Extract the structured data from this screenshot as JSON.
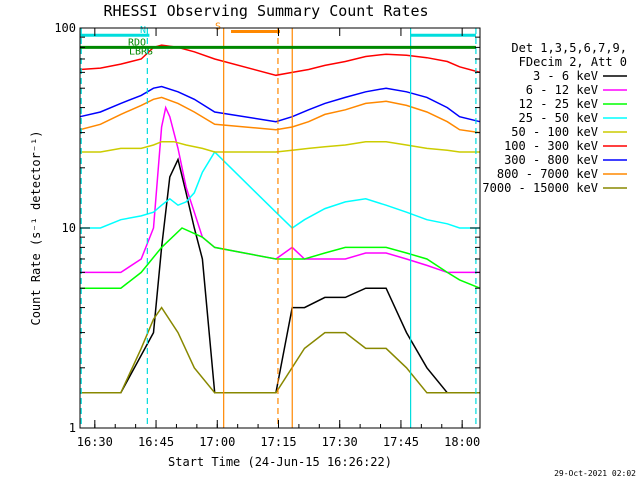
{
  "chart_data": {
    "type": "line",
    "title": "RHESSI Observing Summary Count Rates",
    "xlabel": "Start Time (24-Jun-15 16:26:22)",
    "ylabel": "Count Rate (s⁻¹ detector⁻¹)",
    "xaxis_unit": "minutes after 16:26:22",
    "xlim": [
      0,
      98
    ],
    "ylim": [
      1,
      100
    ],
    "yscale": "log",
    "x_ticks": [
      "16:30",
      "16:45",
      "17:00",
      "17:15",
      "17:30",
      "17:45",
      "18:00"
    ],
    "x_tick_values": [
      3.63,
      18.63,
      33.63,
      48.63,
      63.63,
      78.63,
      93.63
    ],
    "y_ticks": [
      "1",
      "10",
      "100"
    ],
    "y_tick_values": [
      1,
      10,
      100
    ],
    "legend_header": [
      "Det 1,3,5,6,7,9,",
      "FDecim 2, Att 0"
    ],
    "legend_position": "right",
    "timestamp": "29-Oct-2021 02:02",
    "data_gap": [
      34.5,
      47.5
    ],
    "series": [
      {
        "name": "3 - 6 keV",
        "color": "#000000",
        "x": [
          0,
          10,
          18,
          20,
          22,
          24,
          26,
          28,
          30,
          33,
          48,
          52,
          55,
          60,
          65,
          70,
          75,
          80,
          85,
          90,
          93,
          98
        ],
        "y": [
          1.5,
          1.5,
          3,
          8,
          18,
          22,
          15,
          10,
          7,
          1.5,
          1.5,
          4,
          4,
          4.5,
          4.5,
          5,
          5,
          3,
          2,
          1.5,
          1.5,
          1.5
        ]
      },
      {
        "name": "6 - 12 keV",
        "color": "#ff00ff",
        "x": [
          0,
          5,
          10,
          15,
          18,
          20,
          21,
          22,
          24,
          26,
          28,
          30,
          33,
          48,
          52,
          55,
          60,
          65,
          70,
          75,
          80,
          85,
          90,
          93,
          98
        ],
        "y": [
          6,
          6,
          6,
          7,
          10,
          32,
          40,
          36,
          25,
          16,
          12,
          9,
          8,
          7,
          8,
          7,
          7,
          7,
          7.5,
          7.5,
          7,
          6.5,
          6,
          6,
          6
        ]
      },
      {
        "name": "12 - 25 keV",
        "color": "#00ff00",
        "x": [
          0,
          10,
          15,
          20,
          25,
          30,
          33,
          48,
          55,
          60,
          65,
          70,
          75,
          80,
          85,
          90,
          93,
          98
        ],
        "y": [
          5,
          5,
          6,
          8,
          10,
          9,
          8,
          7,
          7,
          7.5,
          8,
          8,
          8,
          7.5,
          7,
          6,
          5.5,
          5
        ]
      },
      {
        "name": "25 - 50 keV",
        "color": "#00ffff",
        "x": [
          0,
          5,
          10,
          15,
          18,
          20,
          22,
          24,
          26,
          28,
          30,
          33,
          48,
          52,
          55,
          60,
          65,
          70,
          75,
          80,
          85,
          90,
          93,
          98
        ],
        "y": [
          10,
          10,
          11,
          11.5,
          12,
          13,
          14,
          13,
          13.5,
          15,
          19,
          24,
          12,
          10,
          11,
          12.5,
          13.5,
          14,
          13,
          12,
          11,
          10.5,
          10,
          10
        ]
      },
      {
        "name": "50 - 100 keV",
        "color": "#cccc00",
        "x": [
          0,
          5,
          10,
          15,
          18,
          20,
          23,
          26,
          30,
          33,
          48,
          52,
          56,
          60,
          65,
          70,
          75,
          80,
          85,
          90,
          93,
          98
        ],
        "y": [
          24,
          24,
          25,
          25,
          26,
          27,
          27,
          26,
          25,
          24,
          24,
          24.5,
          25,
          25.5,
          26,
          27,
          27,
          26,
          25,
          24.5,
          24,
          24
        ]
      },
      {
        "name": "100 - 300 keV",
        "color": "#ff0000",
        "x": [
          0,
          5,
          10,
          15,
          18,
          20,
          24,
          28,
          33,
          48,
          52,
          56,
          60,
          65,
          70,
          75,
          80,
          85,
          90,
          93,
          98
        ],
        "y": [
          62,
          63,
          66,
          70,
          80,
          82,
          80,
          76,
          70,
          58,
          60,
          62,
          65,
          68,
          72,
          74,
          73,
          71,
          68,
          64,
          60
        ]
      },
      {
        "name": "300 - 800 keV",
        "color": "#0000ff",
        "x": [
          0,
          5,
          10,
          15,
          18,
          20,
          24,
          28,
          33,
          48,
          52,
          56,
          60,
          65,
          70,
          75,
          80,
          85,
          90,
          93,
          98
        ],
        "y": [
          36,
          38,
          42,
          46,
          50,
          51,
          48,
          44,
          38,
          34,
          36,
          39,
          42,
          45,
          48,
          50,
          48,
          45,
          40,
          36,
          34
        ]
      },
      {
        "name": "800 - 7000 keV",
        "color": "#ff8800",
        "x": [
          0,
          5,
          10,
          15,
          18,
          20,
          24,
          28,
          33,
          48,
          52,
          56,
          60,
          65,
          70,
          75,
          80,
          85,
          90,
          93,
          98
        ],
        "y": [
          31,
          33,
          37,
          41,
          44,
          45,
          42,
          38,
          33,
          31,
          32,
          34,
          37,
          39,
          42,
          43,
          41,
          38,
          34,
          31,
          30
        ]
      },
      {
        "name": "7000 - 15000 keV",
        "color": "#888800",
        "x": [
          0,
          10,
          15,
          18,
          20,
          24,
          28,
          33,
          48,
          55,
          60,
          65,
          70,
          75,
          80,
          85,
          90,
          93,
          98
        ],
        "y": [
          1.5,
          1.5,
          2.5,
          3.5,
          4,
          3,
          2,
          1.5,
          1.5,
          2.5,
          3,
          3,
          2.5,
          2.5,
          2,
          1.5,
          1.5,
          1.5,
          1.5
        ]
      }
    ],
    "flags": [
      {
        "label": "N",
        "color": "#00dddd",
        "y": 92,
        "spans": [
          [
            0,
            17
          ],
          [
            81,
            97
          ]
        ]
      },
      {
        "label": "RDO",
        "color": "#008800",
        "y": 80,
        "spans": [
          [
            0,
            97
          ]
        ]
      },
      {
        "label": "LBRS",
        "color": "#008800",
        "y": 72,
        "spans": []
      },
      {
        "label": "S",
        "color": "#ff8800",
        "y": 96,
        "spans": [
          [
            37,
            49
          ]
        ]
      }
    ],
    "vertical_markers": [
      {
        "x": 0.3,
        "color": "#00dddd",
        "style": "dashed"
      },
      {
        "x": 16.5,
        "color": "#00dddd",
        "style": "dashed"
      },
      {
        "x": 35.2,
        "color": "#ff8800",
        "style": "solid"
      },
      {
        "x": 48.5,
        "color": "#ff8800",
        "style": "dashed"
      },
      {
        "x": 52.0,
        "color": "#ff8800",
        "style": "solid"
      },
      {
        "x": 81.0,
        "color": "#00dddd",
        "style": "solid"
      },
      {
        "x": 97.0,
        "color": "#00dddd",
        "style": "dashed"
      }
    ]
  }
}
